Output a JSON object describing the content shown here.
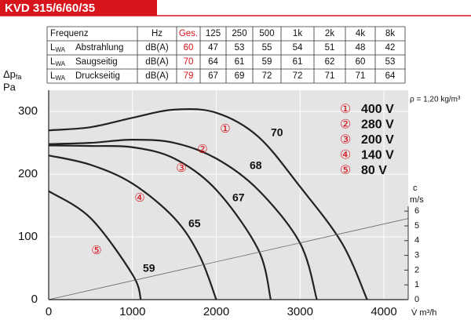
{
  "header": {
    "title": "KVD 315/6/60/35"
  },
  "table": {
    "columns": [
      "Frequenz",
      "Hz",
      "Ges.",
      "125",
      "250",
      "500",
      "1k",
      "2k",
      "4k",
      "8k"
    ],
    "rows": [
      {
        "symbol": "L",
        "subscript": "WA",
        "name": "Abstrahlung",
        "unit": "dB(A)",
        "values": [
          60,
          47,
          53,
          55,
          54,
          51,
          48,
          42
        ]
      },
      {
        "symbol": "L",
        "subscript": "WA",
        "name": "Saugseitig",
        "unit": "dB(A)",
        "values": [
          70,
          64,
          61,
          59,
          61,
          62,
          60,
          53
        ]
      },
      {
        "symbol": "L",
        "subscript": "WA",
        "name": "Druckseitig",
        "unit": "dB(A)",
        "values": [
          79,
          67,
          69,
          72,
          72,
          71,
          71,
          64
        ]
      }
    ]
  },
  "chart_data": {
    "type": "line",
    "ylabel": {
      "symbol": "Δp",
      "subscript": "fa",
      "unit": "Pa"
    },
    "xlabel": "V̇ m³/h",
    "y2label": {
      "symbol": "c",
      "unit": "m/s"
    },
    "annotation": "ρ = 1,20 kg/m³",
    "xlim": [
      0,
      4290
    ],
    "xticks": [
      0,
      1000,
      2000,
      3000,
      4000
    ],
    "ylim": [
      0,
      334
    ],
    "yticks": [
      0,
      100,
      200,
      300
    ],
    "y2lim": [
      0,
      14.2
    ],
    "y2ticks": [
      0,
      1,
      2,
      3,
      4,
      5,
      6
    ],
    "grid": true,
    "series": [
      {
        "name": "400 V",
        "symbol": "①",
        "label": "70",
        "color": "#222",
        "x": [
          0,
          500,
          1000,
          1500,
          2000,
          2500,
          3000,
          3500,
          3800
        ],
        "values": [
          270,
          275,
          290,
          303,
          298,
          260,
          180,
          90,
          0
        ]
      },
      {
        "name": "280 V",
        "symbol": "②",
        "label": "68",
        "color": "#222",
        "x": [
          0,
          500,
          1000,
          1500,
          2000,
          2500,
          3000,
          3200
        ],
        "values": [
          248,
          250,
          255,
          250,
          225,
          175,
          90,
          0
        ]
      },
      {
        "name": "200 V",
        "symbol": "③",
        "label": "67",
        "color": "#222",
        "x": [
          0,
          500,
          1000,
          1500,
          2000,
          2500,
          2650
        ],
        "values": [
          246,
          245,
          243,
          225,
          175,
          80,
          0
        ]
      },
      {
        "name": "140 V",
        "symbol": "④",
        "label": "65",
        "color": "#222",
        "x": [
          0,
          500,
          1000,
          1500,
          1800,
          2000
        ],
        "values": [
          230,
          215,
          185,
          130,
          70,
          0
        ]
      },
      {
        "name": "80 V",
        "symbol": "⑤",
        "label": "59",
        "color": "#222",
        "x": [
          0,
          500,
          1000,
          1100
        ],
        "values": [
          173,
          130,
          40,
          0
        ]
      },
      {
        "name": "c",
        "axis": "y2",
        "color": "#666",
        "x": [
          0,
          4290
        ],
        "values": [
          0,
          5.5
        ]
      }
    ]
  }
}
